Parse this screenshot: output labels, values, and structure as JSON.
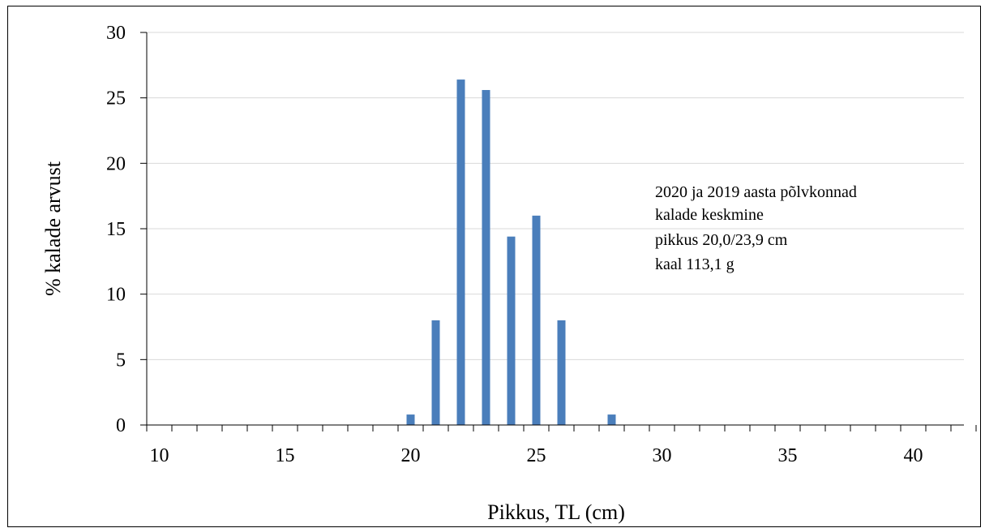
{
  "chart_data": {
    "type": "bar",
    "title": "",
    "xlabel": "Pikkus, TL (cm)",
    "ylabel": "% kalade arvust",
    "xlim": [
      10,
      40
    ],
    "ylim": [
      0,
      30
    ],
    "x_ticks": [
      10,
      15,
      20,
      25,
      30,
      35,
      40
    ],
    "y_ticks": [
      0,
      5,
      10,
      15,
      20,
      25,
      30
    ],
    "grid": "horizontal",
    "legend": "none",
    "bar_color": "#4a7ebb",
    "x": [
      20,
      21,
      22,
      23,
      24,
      25,
      26,
      28
    ],
    "values": [
      0.8,
      8.0,
      26.4,
      25.6,
      14.4,
      16.0,
      8.0,
      0.8
    ],
    "annotation": {
      "lines": [
        "2020 ja 2019 aasta põlvkonnad",
        "kalade keskmine",
        "pikkus 20,0/23,9 cm",
        "kaal 113,1 g"
      ]
    }
  }
}
